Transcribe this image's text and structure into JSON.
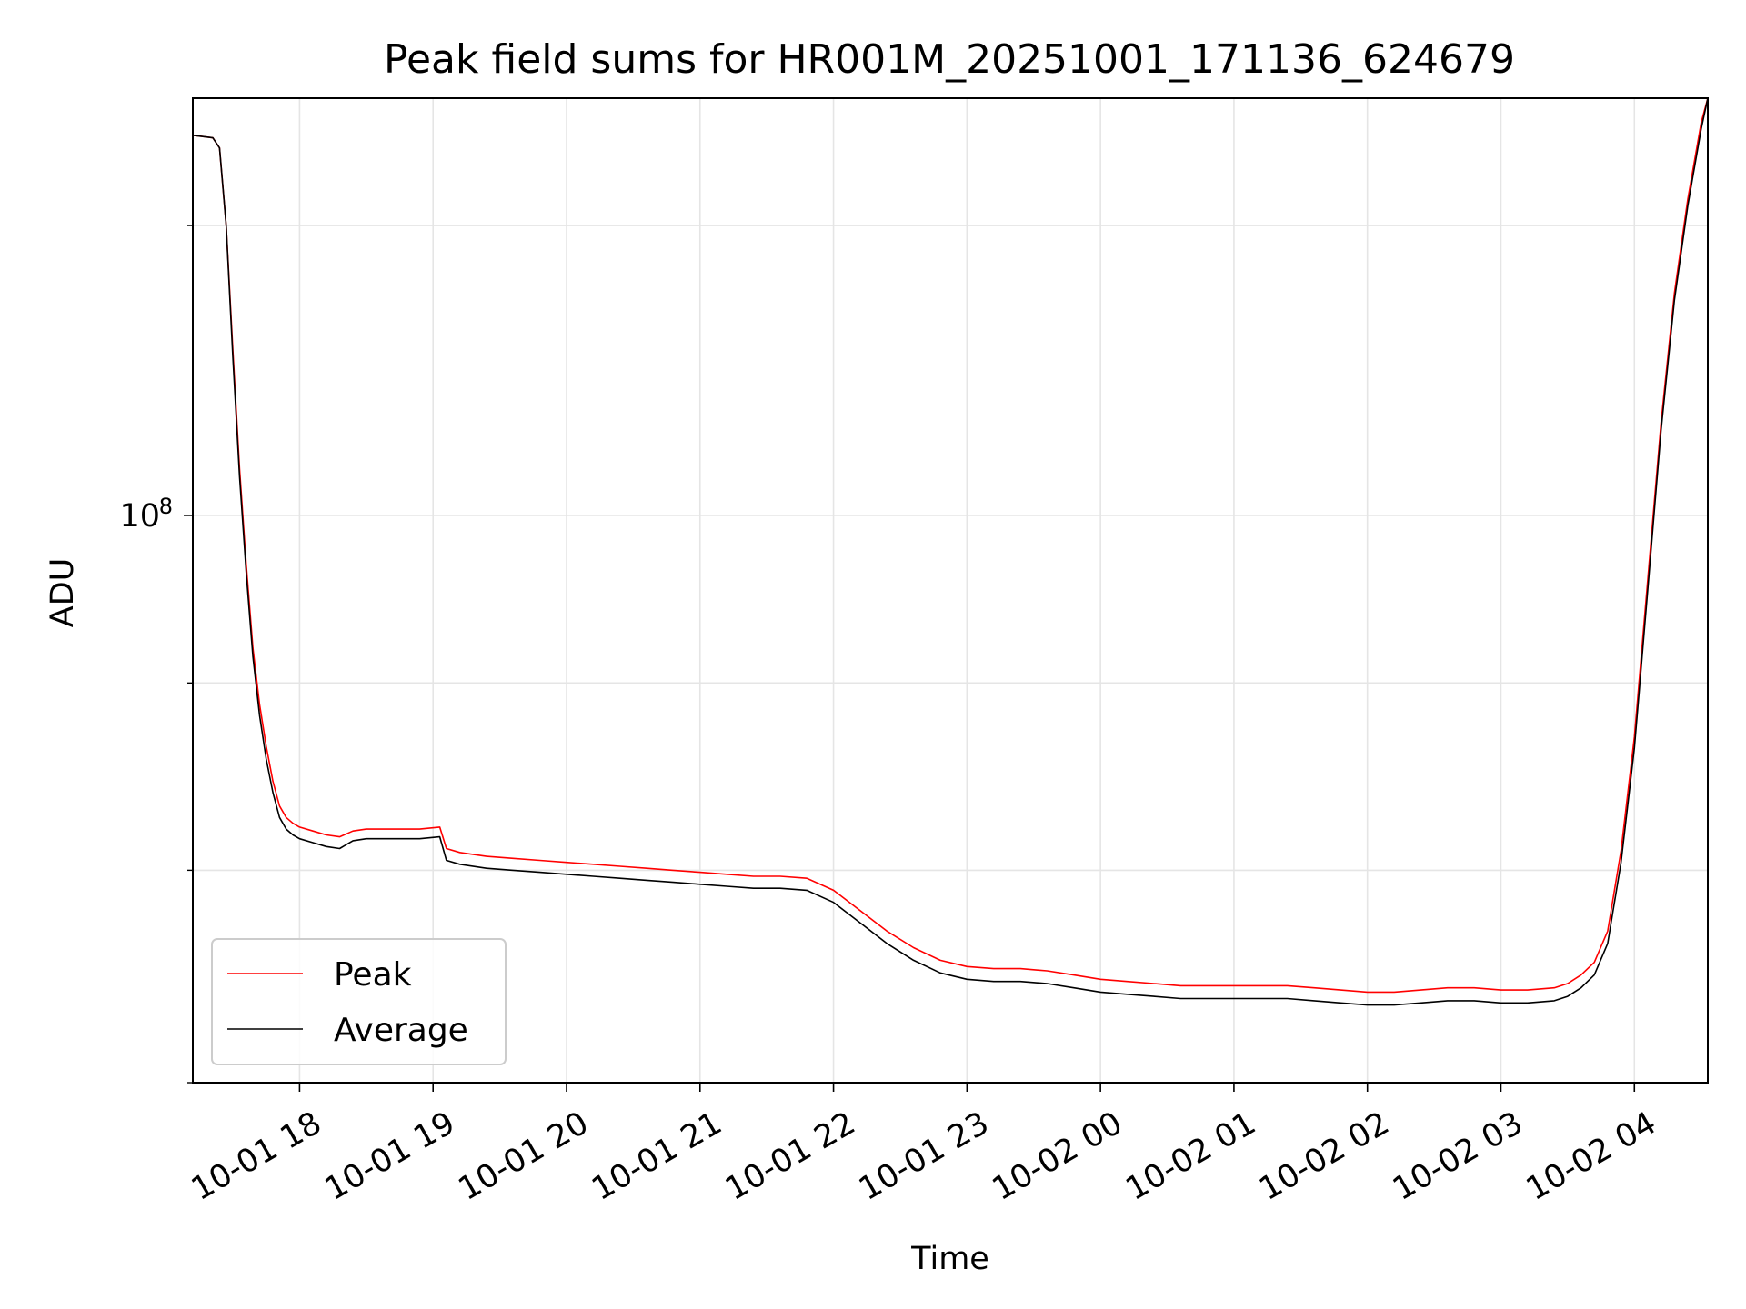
{
  "chart_data": {
    "type": "line",
    "title": "Peak field sums for HR001M_20251001_171136_624679",
    "xlabel": "Time",
    "ylabel": "ADU",
    "yscale": "log",
    "x_unit": "hours since 10-01 00:00",
    "xlim": [
      17.2,
      28.55
    ],
    "ylim": [
      70000000.0,
      130000000.0
    ],
    "grid": true,
    "legend_position": "lower-left",
    "x_ticks": [
      {
        "value": 18,
        "label": "10-01 18"
      },
      {
        "value": 19,
        "label": "10-01 19"
      },
      {
        "value": 20,
        "label": "10-01 20"
      },
      {
        "value": 21,
        "label": "10-01 21"
      },
      {
        "value": 22,
        "label": "10-01 22"
      },
      {
        "value": 23,
        "label": "10-01 23"
      },
      {
        "value": 24,
        "label": "10-02 00"
      },
      {
        "value": 25,
        "label": "10-02 01"
      },
      {
        "value": 26,
        "label": "10-02 02"
      },
      {
        "value": 27,
        "label": "10-02 03"
      },
      {
        "value": 28,
        "label": "10-02 04"
      }
    ],
    "y_major_ticks": [
      {
        "value": 100000000,
        "base": "10",
        "exponent": "8"
      }
    ],
    "y_minor_ticks": [
      70000000,
      80000000,
      90000000,
      120000000
    ],
    "series": [
      {
        "name": "Peak",
        "color": "#ff0000",
        "x": [
          17.2,
          17.35,
          17.4,
          17.45,
          17.5,
          17.55,
          17.6,
          17.65,
          17.7,
          17.75,
          17.8,
          17.85,
          17.9,
          17.95,
          18.0,
          18.1,
          18.2,
          18.3,
          18.4,
          18.5,
          18.7,
          18.9,
          19.05,
          19.1,
          19.2,
          19.4,
          19.6,
          19.8,
          20.0,
          20.2,
          20.4,
          20.6,
          20.8,
          21.0,
          21.2,
          21.4,
          21.6,
          21.8,
          22.0,
          22.2,
          22.4,
          22.6,
          22.8,
          23.0,
          23.2,
          23.4,
          23.6,
          23.8,
          24.0,
          24.2,
          24.4,
          24.6,
          24.8,
          25.0,
          25.2,
          25.4,
          25.6,
          25.8,
          26.0,
          26.2,
          26.4,
          26.6,
          26.8,
          27.0,
          27.2,
          27.4,
          27.5,
          27.6,
          27.7,
          27.8,
          27.9,
          28.0,
          28.1,
          28.2,
          28.3,
          28.4,
          28.5,
          28.55
        ],
        "values": [
          127000000,
          126800000,
          126000000,
          120000000,
          111000000,
          103000000,
          97000000,
          92000000,
          88800000,
          86500000,
          84600000,
          83300000,
          82700000,
          82400000,
          82200000,
          82000000,
          81800000,
          81700000,
          82000000,
          82100000,
          82100000,
          82100000,
          82200000,
          81100000,
          80900000,
          80700000,
          80600000,
          80500000,
          80400000,
          80300000,
          80200000,
          80100000,
          80000000,
          79900000,
          79800000,
          79700000,
          79700000,
          79600000,
          79000000,
          78000000,
          77000000,
          76200000,
          75600000,
          75300000,
          75200000,
          75200000,
          75100000,
          74900000,
          74700000,
          74600000,
          74500000,
          74400000,
          74400000,
          74400000,
          74400000,
          74400000,
          74300000,
          74200000,
          74100000,
          74100000,
          74200000,
          74300000,
          74300000,
          74200000,
          74200000,
          74300000,
          74500000,
          74900000,
          75500000,
          77000000,
          81000000,
          87000000,
          96000000,
          106000000,
          115000000,
          122000000,
          128000000,
          130000000
        ]
      },
      {
        "name": "Average",
        "color": "#000000",
        "x": [
          17.2,
          17.35,
          17.4,
          17.45,
          17.5,
          17.55,
          17.6,
          17.65,
          17.7,
          17.75,
          17.8,
          17.85,
          17.9,
          17.95,
          18.0,
          18.1,
          18.2,
          18.3,
          18.4,
          18.5,
          18.7,
          18.9,
          19.05,
          19.1,
          19.2,
          19.4,
          19.6,
          19.8,
          20.0,
          20.2,
          20.4,
          20.6,
          20.8,
          21.0,
          21.2,
          21.4,
          21.6,
          21.8,
          22.0,
          22.2,
          22.4,
          22.6,
          22.8,
          23.0,
          23.2,
          23.4,
          23.6,
          23.8,
          24.0,
          24.2,
          24.4,
          24.6,
          24.8,
          25.0,
          25.2,
          25.4,
          25.6,
          25.8,
          26.0,
          26.2,
          26.4,
          26.6,
          26.8,
          27.0,
          27.2,
          27.4,
          27.5,
          27.6,
          27.7,
          27.8,
          27.9,
          28.0,
          28.1,
          28.2,
          28.3,
          28.4,
          28.5,
          28.55
        ],
        "values": [
          127000000,
          126800000,
          126000000,
          120000000,
          110500000,
          102500000,
          96500000,
          91500000,
          88200000,
          85800000,
          84000000,
          82700000,
          82100000,
          81800000,
          81600000,
          81400000,
          81200000,
          81100000,
          81500000,
          81600000,
          81600000,
          81600000,
          81700000,
          80500000,
          80300000,
          80100000,
          80000000,
          79900000,
          79800000,
          79700000,
          79600000,
          79500000,
          79400000,
          79300000,
          79200000,
          79100000,
          79100000,
          79000000,
          78400000,
          77400000,
          76400000,
          75600000,
          75000000,
          74700000,
          74600000,
          74600000,
          74500000,
          74300000,
          74100000,
          74000000,
          73900000,
          73800000,
          73800000,
          73800000,
          73800000,
          73800000,
          73700000,
          73600000,
          73500000,
          73500000,
          73600000,
          73700000,
          73700000,
          73600000,
          73600000,
          73700000,
          73900000,
          74300000,
          74900000,
          76400000,
          80400000,
          86400000,
          95400000,
          105500000,
          114500000,
          121500000,
          127500000,
          130000000
        ]
      }
    ]
  }
}
